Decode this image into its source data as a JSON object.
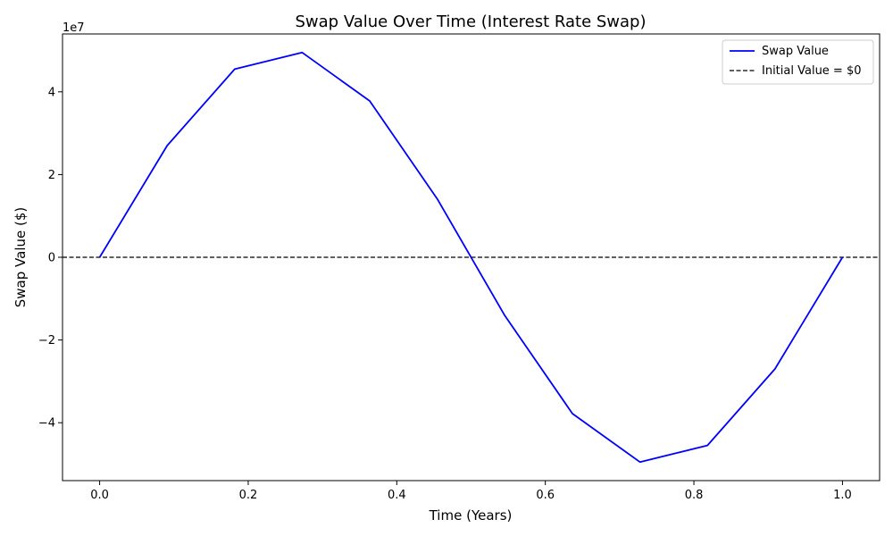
{
  "chart_data": {
    "type": "line",
    "title": "Swap Value Over Time (Interest Rate Swap)",
    "xlabel": "Time (Years)",
    "ylabel": "Swap Value ($)",
    "y_offset_label": "1e7",
    "xlim": [
      -0.05,
      1.05
    ],
    "ylim": [
      -5.4,
      5.4
    ],
    "y_scale_multiplier": 10000000,
    "x_ticks": [
      0.0,
      0.2,
      0.4,
      0.6,
      0.8,
      1.0
    ],
    "x_tick_labels": [
      "0.0",
      "0.2",
      "0.4",
      "0.6",
      "0.8",
      "1.0"
    ],
    "y_ticks": [
      -4,
      -2,
      0,
      2,
      4
    ],
    "y_tick_labels": [
      "−4",
      "−2",
      "0",
      "2",
      "4"
    ],
    "grid": false,
    "legend_position": "top-right",
    "series": [
      {
        "name": "Swap Value",
        "color": "#0000ff",
        "style": "solid",
        "x": [
          0.0,
          0.0909,
          0.1818,
          0.2727,
          0.3636,
          0.4545,
          0.5455,
          0.6364,
          0.7273,
          0.8182,
          0.9091,
          1.0
        ],
        "y": [
          0.0,
          2.7,
          4.55,
          4.95,
          3.78,
          1.41,
          -1.41,
          -3.78,
          -4.95,
          -4.55,
          -2.7,
          0.0
        ]
      }
    ],
    "reference_lines": [
      {
        "name": "Initial Value = $0",
        "orientation": "horizontal",
        "y": 0,
        "color": "#000000",
        "style": "dashed"
      }
    ]
  }
}
